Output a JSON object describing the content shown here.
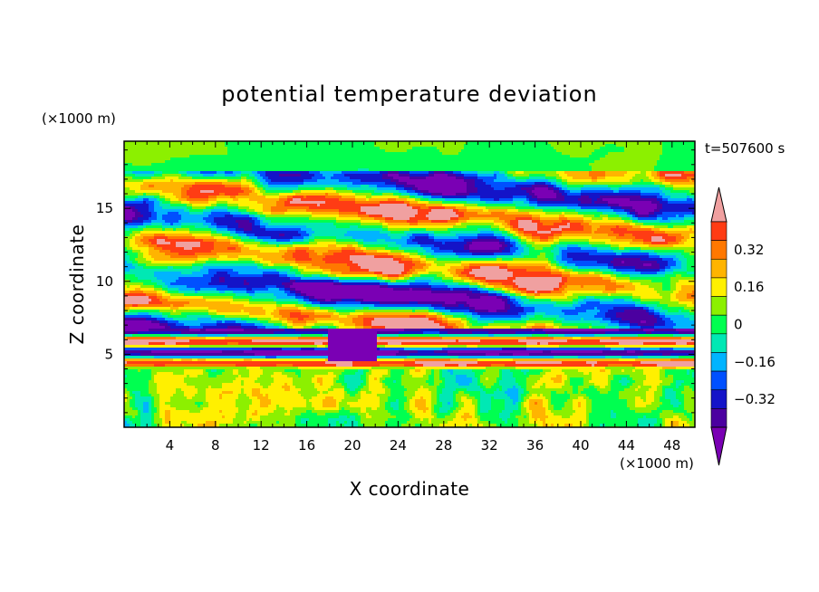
{
  "chart_data": {
    "type": "heatmap",
    "title": "potential temperature deviation",
    "xlabel": "X coordinate",
    "ylabel": "Z coordinate",
    "x_unit": "(×1000 m)",
    "y_unit": "(×1000 m)",
    "time_label": "t=507600 s",
    "xlim": [
      0,
      50
    ],
    "ylim": [
      0,
      19.6
    ],
    "x_ticks": [
      4,
      8,
      12,
      16,
      20,
      24,
      28,
      32,
      36,
      40,
      44,
      48
    ],
    "y_ticks": [
      5,
      10,
      15
    ],
    "colorbar": {
      "levels": [
        -0.48,
        -0.4,
        -0.32,
        -0.24,
        -0.16,
        -0.08,
        0,
        0.08,
        0.16,
        0.24,
        0.32,
        0.4,
        0.48
      ],
      "tick_labels": [
        "0.32",
        "0.16",
        "0",
        "−0.16",
        "−0.32"
      ],
      "tick_values": [
        0.32,
        0.16,
        0,
        -0.16,
        -0.32
      ],
      "extend": "both",
      "colors": [
        "#7a00b4",
        "#4b00a0",
        "#1414c8",
        "#0050ff",
        "#00b4ff",
        "#00e8b4",
        "#00ff50",
        "#8cf000",
        "#fff000",
        "#ffb400",
        "#ff7800",
        "#ff3c14",
        "#f0a0a0"
      ]
    }
  }
}
